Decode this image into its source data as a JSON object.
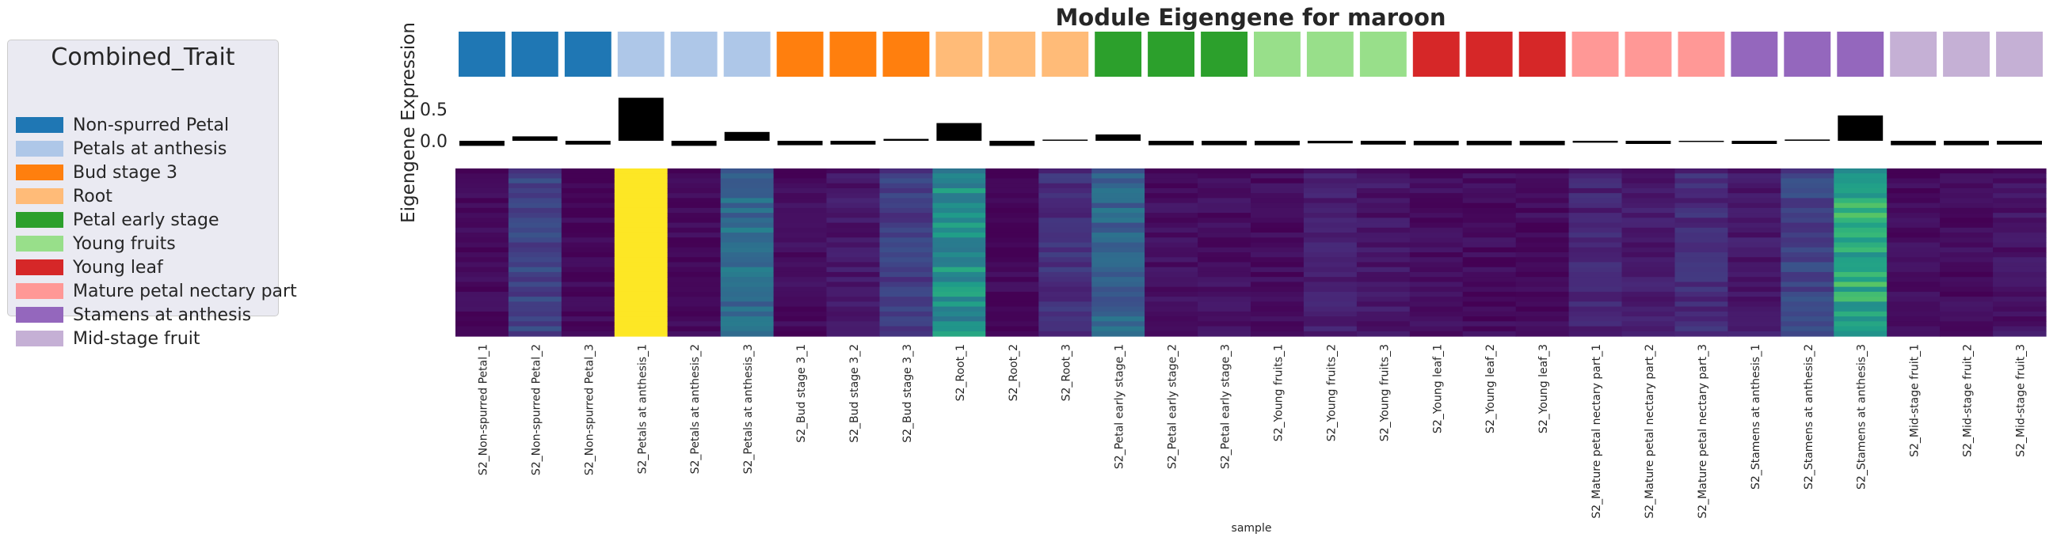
{
  "chart_data": {
    "type": "heatmap",
    "title": "Module Eigengene for maroon",
    "ylabel": "Eigengene Expression",
    "xlabel": "sample",
    "bar_yticks": [
      "0.5",
      "0.0"
    ],
    "bar_ylim": [
      -0.1,
      0.7
    ],
    "legend": {
      "title": "Combined_Trait",
      "placement": "left",
      "entries": [
        {
          "label": "Non-spurred Petal",
          "color": "#1f77b4"
        },
        {
          "label": "Petals at anthesis",
          "color": "#aec7e8"
        },
        {
          "label": "Bud stage 3",
          "color": "#ff7f0e"
        },
        {
          "label": "Root",
          "color": "#ffbb78"
        },
        {
          "label": "Petal early stage",
          "color": "#2ca02c"
        },
        {
          "label": "Young fruits",
          "color": "#98df8a"
        },
        {
          "label": "Young leaf",
          "color": "#d62728"
        },
        {
          "label": "Mature petal nectary part",
          "color": "#ff9896"
        },
        {
          "label": "Stamens at anthesis",
          "color": "#9467bd"
        },
        {
          "label": "Mid-stage fruit",
          "color": "#c5b0d5"
        }
      ]
    },
    "samples": [
      {
        "label": "S2_Non-spurred Petal_1",
        "group": 0,
        "eigengene": -0.08,
        "heat": 0.02
      },
      {
        "label": "S2_Non-spurred Petal_2",
        "group": 0,
        "eigengene": 0.07,
        "heat": 0.2
      },
      {
        "label": "S2_Non-spurred Petal_3",
        "group": 0,
        "eigengene": -0.06,
        "heat": 0.02
      },
      {
        "label": "S2_Petals at anthesis_1",
        "group": 1,
        "eigengene": 0.68,
        "heat": 1.0
      },
      {
        "label": "S2_Petals at anthesis_2",
        "group": 1,
        "eigengene": -0.08,
        "heat": 0.02
      },
      {
        "label": "S2_Petals at anthesis_3",
        "group": 1,
        "eigengene": 0.14,
        "heat": 0.35
      },
      {
        "label": "S2_Bud stage 3_1",
        "group": 2,
        "eigengene": -0.07,
        "heat": 0.03
      },
      {
        "label": "S2_Bud stage 3_2",
        "group": 2,
        "eigengene": -0.06,
        "heat": 0.06
      },
      {
        "label": "S2_Bud stage 3_3",
        "group": 2,
        "eigengene": 0.03,
        "heat": 0.18
      },
      {
        "label": "S2_Root_1",
        "group": 3,
        "eigengene": 0.28,
        "heat": 0.5
      },
      {
        "label": "S2_Root_2",
        "group": 3,
        "eigengene": -0.08,
        "heat": 0.02
      },
      {
        "label": "S2_Root_3",
        "group": 3,
        "eigengene": 0.0,
        "heat": 0.14
      },
      {
        "label": "S2_Petal early stage_1",
        "group": 4,
        "eigengene": 0.1,
        "heat": 0.32
      },
      {
        "label": "S2_Petal early stage_2",
        "group": 4,
        "eigengene": -0.07,
        "heat": 0.04
      },
      {
        "label": "S2_Petal early stage_3",
        "group": 4,
        "eigengene": -0.07,
        "heat": 0.04
      },
      {
        "label": "S2_Young fruits_1",
        "group": 5,
        "eigengene": -0.07,
        "heat": 0.03
      },
      {
        "label": "S2_Young fruits_2",
        "group": 5,
        "eigengene": -0.04,
        "heat": 0.09
      },
      {
        "label": "S2_Young fruits_3",
        "group": 5,
        "eigengene": -0.06,
        "heat": 0.06
      },
      {
        "label": "S2_Young leaf_1",
        "group": 6,
        "eigengene": -0.07,
        "heat": 0.03
      },
      {
        "label": "S2_Young leaf_2",
        "group": 6,
        "eigengene": -0.07,
        "heat": 0.03
      },
      {
        "label": "S2_Young leaf_3",
        "group": 6,
        "eigengene": -0.07,
        "heat": 0.03
      },
      {
        "label": "S2_Mature petal nectary part_1",
        "group": 7,
        "eigengene": -0.03,
        "heat": 0.1
      },
      {
        "label": "S2_Mature petal nectary part_2",
        "group": 7,
        "eigengene": -0.05,
        "heat": 0.07
      },
      {
        "label": "S2_Mature petal nectary part_3",
        "group": 7,
        "eigengene": -0.01,
        "heat": 0.12
      },
      {
        "label": "S2_Stamens at anthesis_1",
        "group": 8,
        "eigengene": -0.05,
        "heat": 0.07
      },
      {
        "label": "S2_Stamens at anthesis_2",
        "group": 8,
        "eigengene": 0.02,
        "heat": 0.2
      },
      {
        "label": "S2_Stamens at anthesis_3",
        "group": 8,
        "eigengene": 0.4,
        "heat": 0.6
      },
      {
        "label": "S2_Mid-stage fruit_1",
        "group": 9,
        "eigengene": -0.07,
        "heat": 0.03
      },
      {
        "label": "S2_Mid-stage fruit_2",
        "group": 9,
        "eigengene": -0.07,
        "heat": 0.03
      },
      {
        "label": "S2_Mid-stage fruit_3",
        "group": 9,
        "eigengene": -0.06,
        "heat": 0.05
      }
    ]
  }
}
